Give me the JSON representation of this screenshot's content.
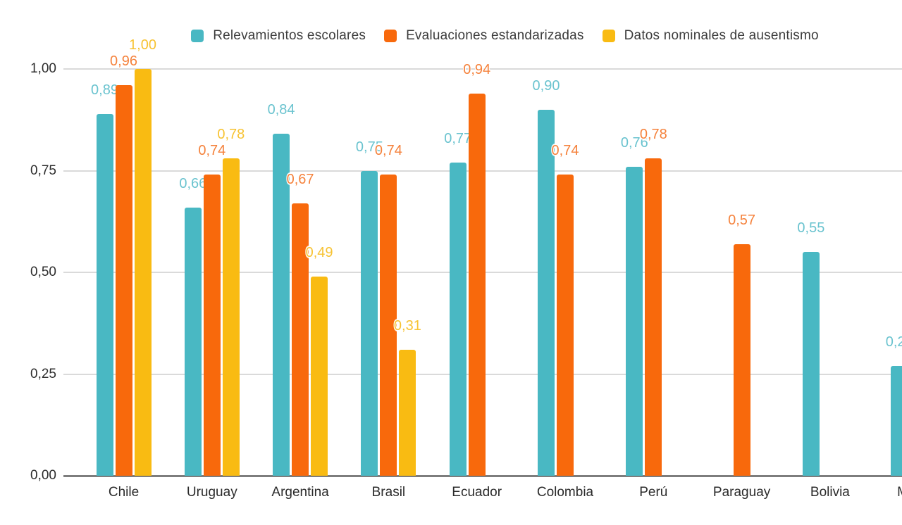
{
  "chart_data": {
    "type": "bar",
    "title": "",
    "xlabel": "",
    "ylabel": "",
    "categories": [
      "Chile",
      "Uruguay",
      "Argentina",
      "Brasil",
      "Ecuador",
      "Colombia",
      "Perú",
      "Paraguay",
      "Bolivia",
      "México"
    ],
    "series": [
      {
        "name": "Relevamientos escolares",
        "color": "#49B8C3",
        "label_color": "#6AC3CF",
        "values": [
          0.89,
          0.66,
          0.84,
          0.75,
          0.77,
          0.9,
          0.76,
          null,
          0.55,
          0.27
        ]
      },
      {
        "name": "Evaluaciones estandarizadas",
        "color": "#F8690C",
        "label_color": "#F5823C",
        "values": [
          0.96,
          0.74,
          0.67,
          0.74,
          0.94,
          0.74,
          0.78,
          0.57,
          null,
          null
        ]
      },
      {
        "name": "Datos nominales de ausentismo",
        "color": "#F9BB12",
        "label_color": "#F7C333",
        "values": [
          1.0,
          0.78,
          0.49,
          0.31,
          null,
          null,
          null,
          null,
          null,
          null
        ]
      }
    ],
    "yticks": [
      {
        "value": 0.0,
        "label": "0,00"
      },
      {
        "value": 0.25,
        "label": "0,25"
      },
      {
        "value": 0.5,
        "label": "0,50"
      },
      {
        "value": 0.75,
        "label": "0,75"
      },
      {
        "value": 1.0,
        "label": "1,00"
      }
    ],
    "ylim": [
      0,
      1
    ],
    "grid": true,
    "legend_position": "top",
    "decimal_separator": ",",
    "note_rightmost_group_clipped": "México group partially cut by right edge; visible label fragments: 'M' and '0,2'"
  },
  "colors": {
    "background": "#FFFFFF",
    "gridline": "#DADADA",
    "baseline": "#7D7D7D",
    "axis_text": "#2D2D2D",
    "legend_text": "#3C3C3C"
  }
}
